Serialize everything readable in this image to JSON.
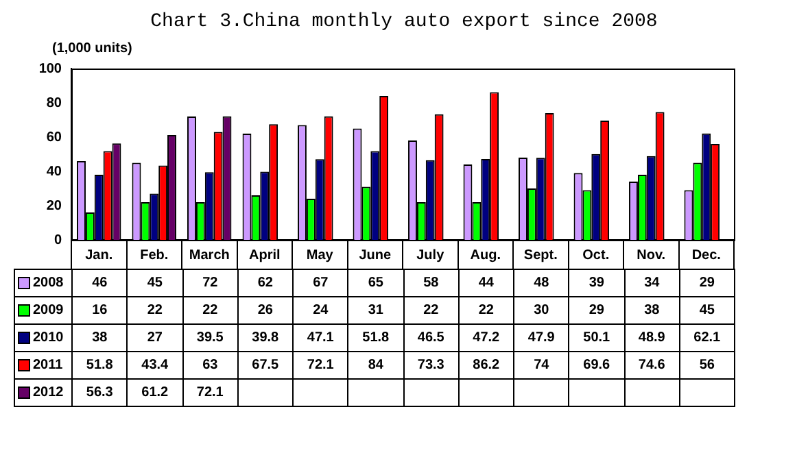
{
  "chart_data": {
    "type": "bar",
    "title": "Chart 3.China monthly auto export since 2008",
    "ylabel": "(1,000 units)",
    "categories": [
      "Jan.",
      "Feb.",
      "March",
      "April",
      "May",
      "June",
      "July",
      "Aug.",
      "Sept.",
      "Oct.",
      "Nov.",
      "Dec."
    ],
    "series": [
      {
        "name": "2008",
        "color": "#cc99ff",
        "values": [
          46,
          45,
          72,
          62,
          67,
          65,
          58,
          44,
          48,
          39,
          34,
          29
        ]
      },
      {
        "name": "2009",
        "color": "#00ff00",
        "values": [
          16,
          22,
          22,
          26,
          24,
          31,
          22,
          22,
          30,
          29,
          38,
          45
        ]
      },
      {
        "name": "2010",
        "color": "#000080",
        "values": [
          38,
          27,
          39.5,
          39.8,
          47.1,
          51.8,
          46.5,
          47.2,
          47.9,
          50.1,
          48.9,
          62.1
        ]
      },
      {
        "name": "2011",
        "color": "#ff0000",
        "values": [
          51.8,
          43.4,
          63,
          67.5,
          72.1,
          84,
          73.3,
          86.2,
          74,
          69.6,
          74.6,
          56
        ]
      },
      {
        "name": "2012",
        "color": "#660066",
        "values": [
          56.3,
          61.2,
          72.1,
          null,
          null,
          null,
          null,
          null,
          null,
          null,
          null,
          null
        ]
      }
    ],
    "ylim": [
      0,
      100
    ],
    "yticks": [
      0,
      20,
      40,
      60,
      80,
      100
    ],
    "grid": false,
    "legend": "bottom",
    "data_labels": true
  }
}
